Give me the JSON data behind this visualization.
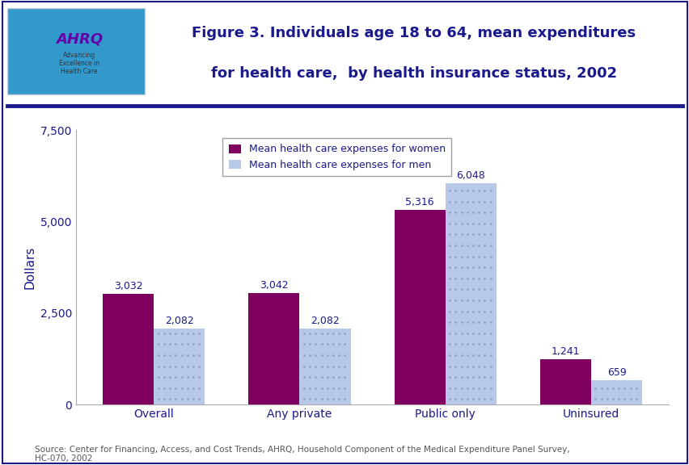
{
  "title_line1": "Figure 3. Individuals age 18 to 64, mean expenditures",
  "title_line2": "for health care,  by health insurance status, 2002",
  "categories": [
    "Overall",
    "Any private",
    "Public only",
    "Uninsured"
  ],
  "women_values": [
    3032,
    3042,
    5316,
    1241
  ],
  "men_values": [
    2082,
    2082,
    6048,
    659
  ],
  "women_labels": [
    "3,032",
    "3,042",
    "5,316",
    "1,241"
  ],
  "men_labels": [
    "2,082",
    "2,082",
    "6,048",
    "659"
  ],
  "women_color": "#800060",
  "men_color": "#b8c8e8",
  "ylabel": "Dollars",
  "ylim": [
    0,
    7500
  ],
  "yticks": [
    0,
    2500,
    5000,
    7500
  ],
  "ytick_labels": [
    "0",
    "2,500",
    "5,000",
    "7,500"
  ],
  "legend_women": "Mean health care expenses for women",
  "legend_men": "Mean health care expenses for men",
  "source_text": "Source: Center for Financing, Access, and Cost Trends, AHRQ, Household Component of the Medical Expenditure Panel Survey,\nHC-070, 2002",
  "bar_width": 0.35,
  "title_color": "#1a1a8c",
  "axis_label_color": "#1a1a8c",
  "tick_label_color": "#1a1a8c",
  "value_label_color": "#1a1a8c",
  "legend_text_color": "#1a1a8c",
  "source_text_color": "#555555",
  "background_color": "#ffffff",
  "header_bg_color": "#ffffff",
  "logo_bg_color": "#3399cc",
  "border_color": "#1a1a8c",
  "divider_color": "#1a1a8c"
}
